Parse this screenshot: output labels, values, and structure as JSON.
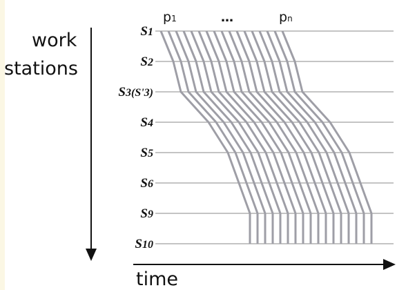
{
  "axes": {
    "vertical_label_line1": "work",
    "vertical_label_line2": "stations",
    "horizontal_label": "time"
  },
  "products": {
    "first": "p",
    "first_sub": "1",
    "ellipsis": "…",
    "last": "p",
    "last_sub": "n"
  },
  "stations": [
    {
      "label": "S1",
      "name": "S",
      "sub": "1",
      "extra": ""
    },
    {
      "label": "S2",
      "name": "S",
      "sub": "2",
      "extra": ""
    },
    {
      "label": "S3(S'3)",
      "name": "S",
      "sub": "3",
      "extra": "(S'3)"
    },
    {
      "label": "S4",
      "name": "S",
      "sub": "4",
      "extra": ""
    },
    {
      "label": "S5",
      "name": "S",
      "sub": "5",
      "extra": ""
    },
    {
      "label": "S6",
      "name": "S",
      "sub": "6",
      "extra": ""
    },
    {
      "label": "S9",
      "name": "S",
      "sub": "9",
      "extra": ""
    },
    {
      "label": "S10",
      "name": "S",
      "sub": "10",
      "extra": ""
    }
  ],
  "colors": {
    "trace": "#9e9ea6",
    "station_line": "#a0a0a0",
    "axis": "#111111",
    "edge_strip": "#fbf7e4"
  }
}
